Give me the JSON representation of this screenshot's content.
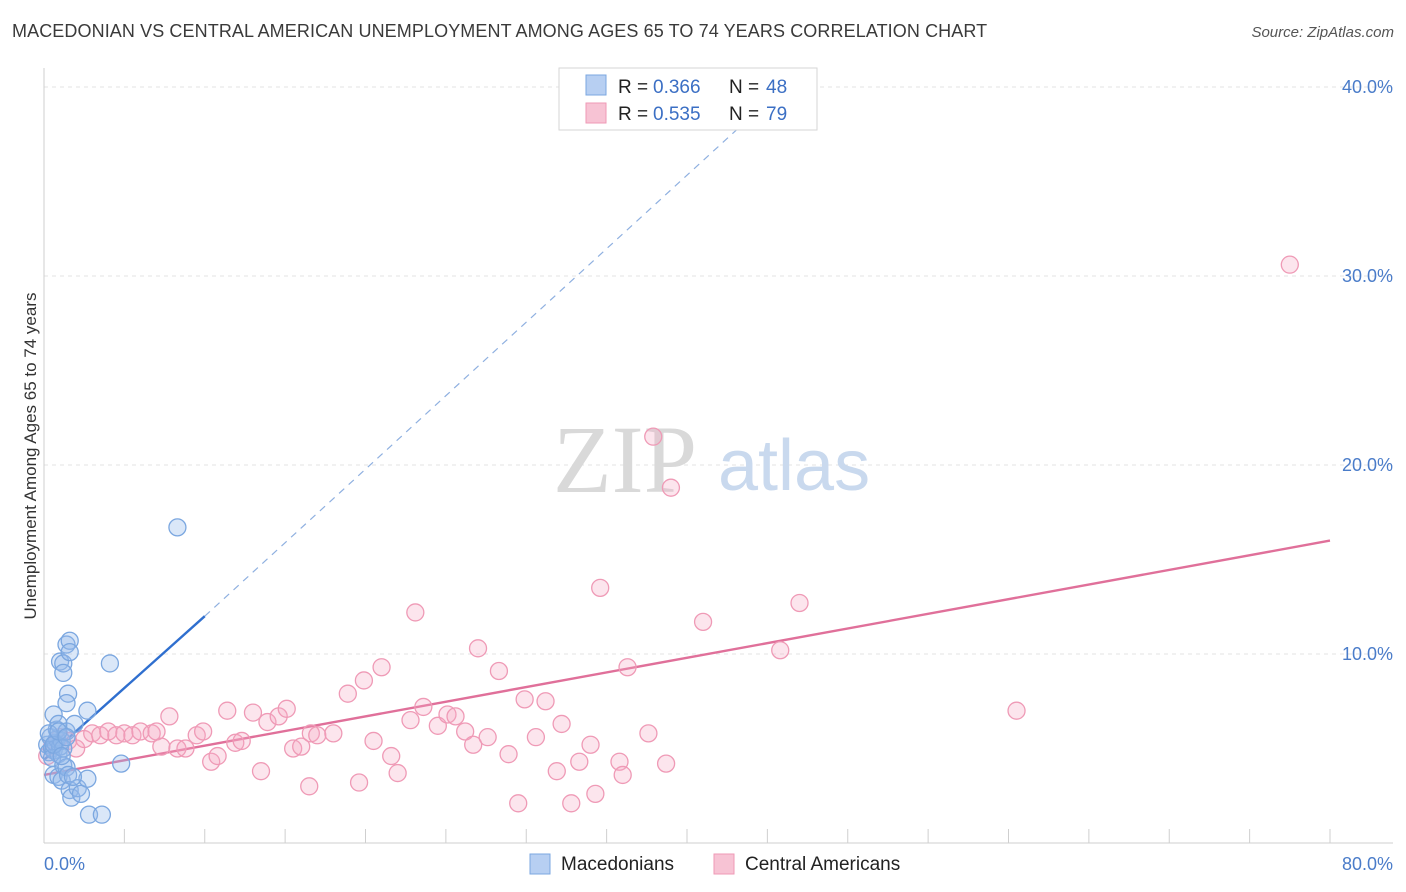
{
  "chart_data": {
    "type": "scatter",
    "title": "MACEDONIAN VS CENTRAL AMERICAN UNEMPLOYMENT AMONG AGES 65 TO 74 YEARS CORRELATION CHART",
    "source": "Source: ZipAtlas.com",
    "xlabel": "",
    "ylabel": "Unemployment Among Ages 65 to 74 years",
    "xlim": [
      0,
      80
    ],
    "ylim": [
      0,
      42
    ],
    "x_tick_labels": {
      "left": "0.0%",
      "right": "80.0%"
    },
    "y_ticks": [
      {
        "value": 10,
        "label": "10.0%"
      },
      {
        "value": 20,
        "label": "20.0%"
      },
      {
        "value": 30,
        "label": "30.0%"
      },
      {
        "value": 40,
        "label": "40.0%"
      }
    ],
    "watermark": {
      "zip": "ZIP",
      "atlas": "atlas"
    },
    "legend": [
      {
        "r_label": "R = ",
        "r": "0.366",
        "n_label": "N = ",
        "n": "48"
      },
      {
        "r_label": "R = ",
        "r": "0.535",
        "n_label": "N = ",
        "n": "79"
      }
    ],
    "series": [
      {
        "name": "Macedonians",
        "color": "#7ba7e0",
        "fill": "rgba(150,185,235,0.35)",
        "line_color": "#2f6fcf",
        "trend": {
          "x0": 0,
          "y0": 4.4,
          "x1": 10,
          "y1": 12,
          "dash_to_x": 46,
          "dash_to_y": 40.0
        },
        "points": [
          [
            0.2,
            5.2
          ],
          [
            0.3,
            4.8
          ],
          [
            0.4,
            5.6
          ],
          [
            0.5,
            5.0
          ],
          [
            0.6,
            4.9
          ],
          [
            0.7,
            5.3
          ],
          [
            0.8,
            5.5
          ],
          [
            0.9,
            4.7
          ],
          [
            1.0,
            5.1
          ],
          [
            1.1,
            5.4
          ],
          [
            0.5,
            4.5
          ],
          [
            0.8,
            6.0
          ],
          [
            0.6,
            6.8
          ],
          [
            0.9,
            6.3
          ],
          [
            1.2,
            5.0
          ],
          [
            1.4,
            5.9
          ],
          [
            1.0,
            9.6
          ],
          [
            1.2,
            9.5
          ],
          [
            1.4,
            10.5
          ],
          [
            1.6,
            10.7
          ],
          [
            1.6,
            10.1
          ],
          [
            1.2,
            9.0
          ],
          [
            1.5,
            7.9
          ],
          [
            1.4,
            7.4
          ],
          [
            1.9,
            6.3
          ],
          [
            2.7,
            7.0
          ],
          [
            4.1,
            9.5
          ],
          [
            0.6,
            3.6
          ],
          [
            0.9,
            3.5
          ],
          [
            1.1,
            3.3
          ],
          [
            1.2,
            4.1
          ],
          [
            1.4,
            4.0
          ],
          [
            1.5,
            3.6
          ],
          [
            1.6,
            2.8
          ],
          [
            1.7,
            2.4
          ],
          [
            2.1,
            2.9
          ],
          [
            2.3,
            2.6
          ],
          [
            2.7,
            3.4
          ],
          [
            2.8,
            1.5
          ],
          [
            3.6,
            1.5
          ],
          [
            4.8,
            4.2
          ],
          [
            8.3,
            16.7
          ],
          [
            0.3,
            5.8
          ],
          [
            0.6,
            5.2
          ],
          [
            0.9,
            5.9
          ],
          [
            1.1,
            4.6
          ],
          [
            1.4,
            5.6
          ],
          [
            1.8,
            3.5
          ]
        ]
      },
      {
        "name": "Central Americans",
        "color": "#ef9ab6",
        "fill": "rgba(245,170,195,0.30)",
        "line_color": "#e0709a",
        "trend": {
          "x0": 0,
          "y0": 3.6,
          "x1": 80,
          "y1": 16.0
        },
        "points": [
          [
            0.5,
            5.1
          ],
          [
            1.0,
            5.6
          ],
          [
            1.5,
            5.4
          ],
          [
            2.0,
            5.0
          ],
          [
            2.5,
            5.5
          ],
          [
            3.0,
            5.8
          ],
          [
            3.5,
            5.7
          ],
          [
            4.0,
            5.9
          ],
          [
            4.5,
            5.7
          ],
          [
            5.0,
            5.8
          ],
          [
            5.5,
            5.7
          ],
          [
            6.0,
            5.9
          ],
          [
            6.7,
            5.8
          ],
          [
            7.0,
            5.9
          ],
          [
            7.3,
            5.1
          ],
          [
            7.8,
            6.7
          ],
          [
            8.3,
            5.0
          ],
          [
            8.8,
            5.0
          ],
          [
            9.5,
            5.7
          ],
          [
            9.9,
            5.9
          ],
          [
            10.4,
            4.3
          ],
          [
            10.8,
            4.6
          ],
          [
            11.4,
            7.0
          ],
          [
            11.9,
            5.3
          ],
          [
            12.3,
            5.4
          ],
          [
            13.0,
            6.9
          ],
          [
            13.5,
            3.8
          ],
          [
            13.9,
            6.4
          ],
          [
            14.6,
            6.7
          ],
          [
            15.1,
            7.1
          ],
          [
            15.5,
            5.0
          ],
          [
            16.0,
            5.1
          ],
          [
            16.5,
            3.0
          ],
          [
            16.6,
            5.8
          ],
          [
            17.0,
            5.7
          ],
          [
            18.0,
            5.8
          ],
          [
            18.9,
            7.9
          ],
          [
            19.6,
            3.2
          ],
          [
            19.9,
            8.6
          ],
          [
            20.5,
            5.4
          ],
          [
            21.0,
            9.3
          ],
          [
            21.6,
            4.6
          ],
          [
            22.0,
            3.7
          ],
          [
            22.8,
            6.5
          ],
          [
            23.1,
            12.2
          ],
          [
            23.6,
            7.2
          ],
          [
            24.5,
            6.2
          ],
          [
            25.1,
            6.8
          ],
          [
            25.6,
            6.7
          ],
          [
            26.2,
            5.9
          ],
          [
            26.7,
            5.2
          ],
          [
            27.0,
            10.3
          ],
          [
            27.6,
            5.6
          ],
          [
            28.3,
            9.1
          ],
          [
            28.9,
            4.7
          ],
          [
            29.5,
            2.1
          ],
          [
            29.9,
            7.6
          ],
          [
            30.6,
            5.6
          ],
          [
            31.2,
            7.5
          ],
          [
            31.9,
            3.8
          ],
          [
            32.2,
            6.3
          ],
          [
            32.8,
            2.1
          ],
          [
            33.3,
            4.3
          ],
          [
            34.0,
            5.2
          ],
          [
            34.3,
            2.6
          ],
          [
            34.6,
            13.5
          ],
          [
            35.8,
            4.3
          ],
          [
            36.0,
            3.6
          ],
          [
            36.3,
            9.3
          ],
          [
            37.6,
            5.8
          ],
          [
            37.9,
            21.5
          ],
          [
            38.7,
            4.2
          ],
          [
            39.0,
            18.8
          ],
          [
            41.0,
            11.7
          ],
          [
            45.8,
            10.2
          ],
          [
            47.0,
            12.7
          ],
          [
            60.5,
            7.0
          ],
          [
            77.5,
            30.6
          ],
          [
            0.2,
            4.6
          ]
        ]
      }
    ]
  }
}
